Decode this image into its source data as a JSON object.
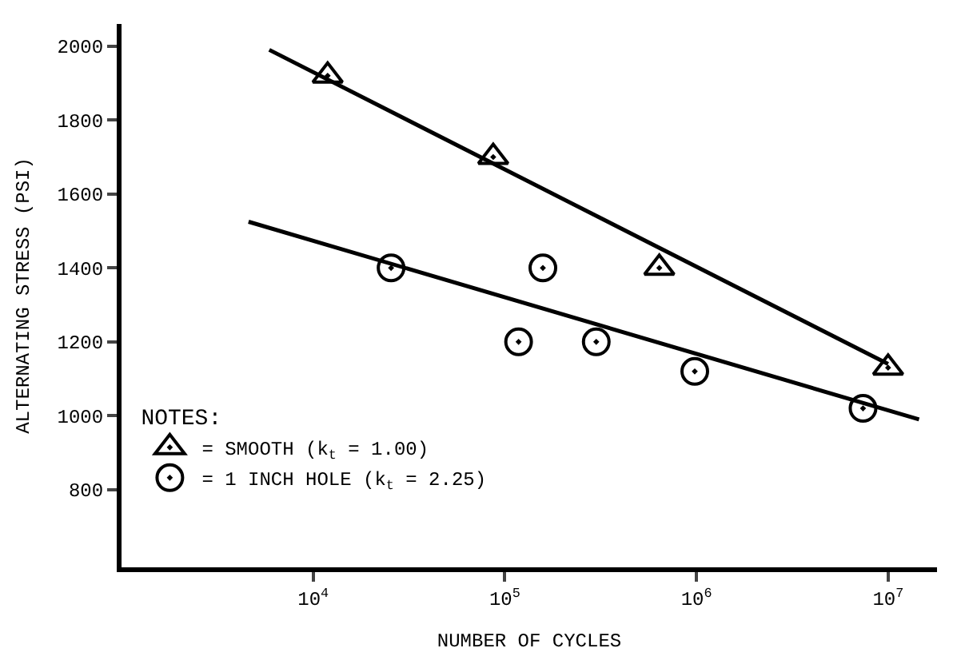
{
  "chart_data": {
    "type": "scatter",
    "xlabel": "NUMBER OF CYCLES",
    "ylabel": "ALTERNATING STRESS (PSI)",
    "legend_title": "NOTES:",
    "legend": "bottom left",
    "log": "x",
    "xlim": [
      1000,
      18000000
    ],
    "ylim": [
      590,
      2060
    ],
    "xticks": [
      {
        "value": 10000,
        "label": "10$^{4}$"
      },
      {
        "value": 100000,
        "label": "10$^{5}$"
      },
      {
        "value": 1000000,
        "label": "10$^{6}$"
      },
      {
        "value": 10000000,
        "label": "10$^{7}$"
      }
    ],
    "yticks": [
      800,
      1000,
      1200,
      1400,
      1600,
      1800,
      2000
    ],
    "series": [
      {
        "name": "= SMOOTH (k$_{t}$ = 1.00)",
        "color": "#000000",
        "marker": "triangle",
        "x": [
          11900,
          87000,
          640000,
          10000000
        ],
        "values": [
          1920,
          1700,
          1400,
          1130
        ]
      },
      {
        "name": "= 1 INCH HOLE (k$_{t}$ = 2.25)",
        "color": "#000000",
        "marker": "circle",
        "x": [
          25500,
          118000,
          158000,
          300000,
          980000,
          7400000
        ],
        "values": [
          1400,
          1200,
          1400,
          1200,
          1120,
          1020
        ]
      },
      {
        "type": "line",
        "color": "#000000",
        "marker": "none",
        "x": [
          5900,
          10000000
        ],
        "values": [
          1990,
          1140
        ]
      },
      {
        "type": "line",
        "color": "#000000",
        "marker": "none",
        "x": [
          4600,
          14500000
        ],
        "values": [
          1525,
          990
        ]
      }
    ]
  }
}
